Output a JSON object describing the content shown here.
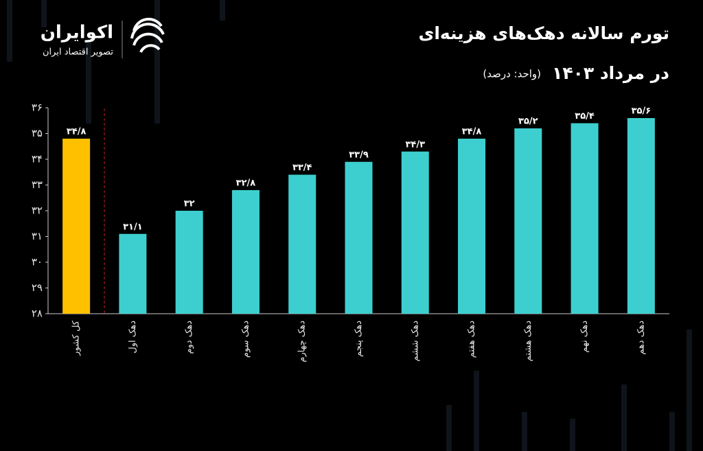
{
  "logo": {
    "name": "اکوایران",
    "tagline": "تصویر اقتصاد ایران"
  },
  "chart_data": {
    "type": "bar",
    "title": "تورم سالانه دهک‌های هزینه‌ای",
    "subtitle": "در مرداد ۱۴۰۳",
    "unit_note": "(واحد: درصد)",
    "categories": [
      "کل کشور",
      "دهک اول",
      "دهک دوم",
      "دهک سوم",
      "دهک چهارم",
      "دهک پنجم",
      "دهک ششم",
      "دهک هفتم",
      "دهک هشتم",
      "دهک نهم",
      "دهک دهم"
    ],
    "values": [
      34.8,
      31.1,
      32,
      32.8,
      33.4,
      33.9,
      34.3,
      34.8,
      35.2,
      35.4,
      35.6
    ],
    "value_labels": [
      "۳۴/۸",
      "۳۱/۱",
      "۳۲",
      "۳۲/۸",
      "۳۳/۴",
      "۳۳/۹",
      "۳۴/۳",
      "۳۴/۸",
      "۳۵/۲",
      "۳۵/۴",
      "۳۵/۶"
    ],
    "colors": [
      "#ffc000",
      "#3dcfcf",
      "#3dcfcf",
      "#3dcfcf",
      "#3dcfcf",
      "#3dcfcf",
      "#3dcfcf",
      "#3dcfcf",
      "#3dcfcf",
      "#3dcfcf",
      "#3dcfcf"
    ],
    "ylim": [
      28,
      36
    ],
    "yticks": [
      {
        "value": 28,
        "label": "۲۸"
      },
      {
        "value": 29,
        "label": "۲۹"
      },
      {
        "value": 30,
        "label": "۳۰"
      },
      {
        "value": 31,
        "label": "۳۱"
      },
      {
        "value": 32,
        "label": "۳۲"
      },
      {
        "value": 33,
        "label": "۳۳"
      },
      {
        "value": 34,
        "label": "۳۴"
      },
      {
        "value": 35,
        "label": "۳۵"
      },
      {
        "value": 36,
        "label": "۳۶"
      }
    ],
    "grid": false
  }
}
